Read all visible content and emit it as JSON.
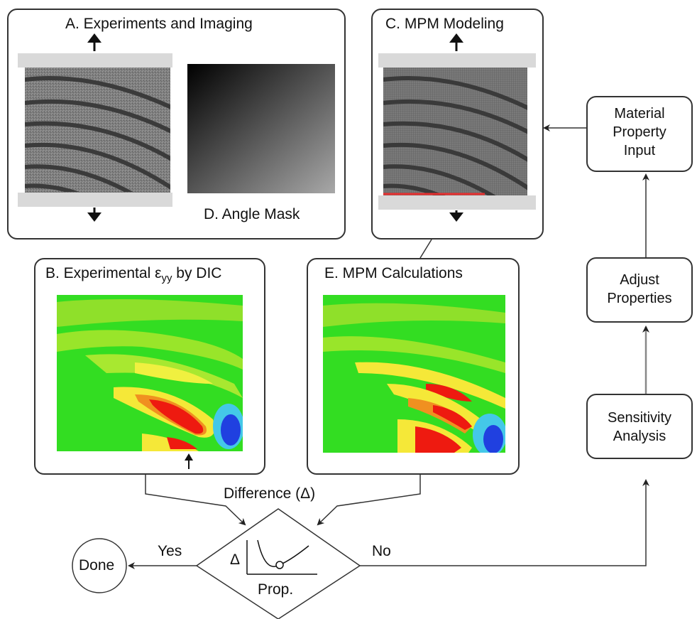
{
  "panel_a": {
    "title": "A. Experiments and Imaging"
  },
  "panel_d": {
    "title": "D. Angle Mask"
  },
  "panel_c": {
    "title": "C. MPM Modeling"
  },
  "panel_b": {
    "title_main": "B. Experimental ε",
    "title_sub": "yy",
    "title_tail": " by DIC"
  },
  "panel_e": {
    "title": "E. MPM Calculations"
  },
  "material_input": {
    "line1": "Material",
    "line2": "Property",
    "line3": "Input"
  },
  "adjust": {
    "line1": "Adjust",
    "line2": "Properties"
  },
  "sensitivity": {
    "line1": "Sensitivity",
    "line2": "Analysis"
  },
  "difference": {
    "label": "Difference (Δ)",
    "axis_y": "Δ",
    "axis_x": "Prop."
  },
  "done": {
    "label": "Done"
  },
  "decision": {
    "yes": "Yes",
    "no": "No"
  },
  "colors": {
    "line": "#333333",
    "grip": "#d9d9d9",
    "red_marker": "#e53030"
  }
}
